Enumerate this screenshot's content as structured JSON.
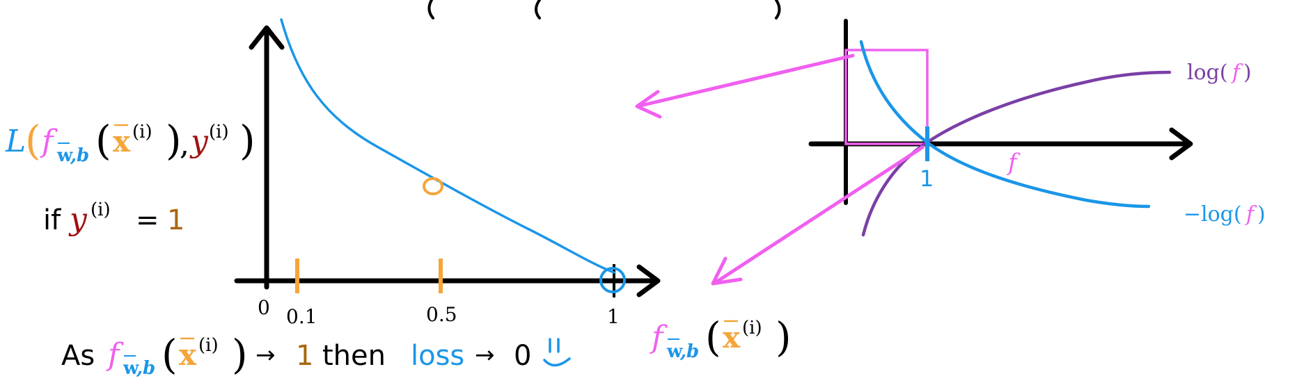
{
  "colors": {
    "blue": "#1a96e8",
    "orange": "#f5a53a",
    "magenta": "#f060ef",
    "purple": "#7a3fa6",
    "darkred": "#a01010",
    "brown": "#a8660a",
    "black": "#000000"
  },
  "loss_plot": {
    "tick_labels": [
      "0",
      "0.1",
      "0.5",
      "1"
    ],
    "marked_point_x": 0.5,
    "minimum_point_x": 1
  },
  "formula": {
    "L": "L",
    "f": "f",
    "sub_w": "w",
    "sub_comma_b": ",b",
    "x": "x",
    "sup_i": "(i)",
    "y": "y",
    "open_paren": "(",
    "close_paren": ")",
    "comma": ","
  },
  "condition": {
    "if": "if",
    "equals": "=",
    "one": "1"
  },
  "bottom": {
    "as": "As",
    "arrow": "→",
    "then": "then",
    "loss": "loss",
    "zero": "0",
    "one": "1"
  },
  "log_plot": {
    "label_log": "log(",
    "label_neglog": "−log(",
    "label_f": "f",
    "label_close": ")",
    "axis_f": "f",
    "tick_one": "1"
  }
}
